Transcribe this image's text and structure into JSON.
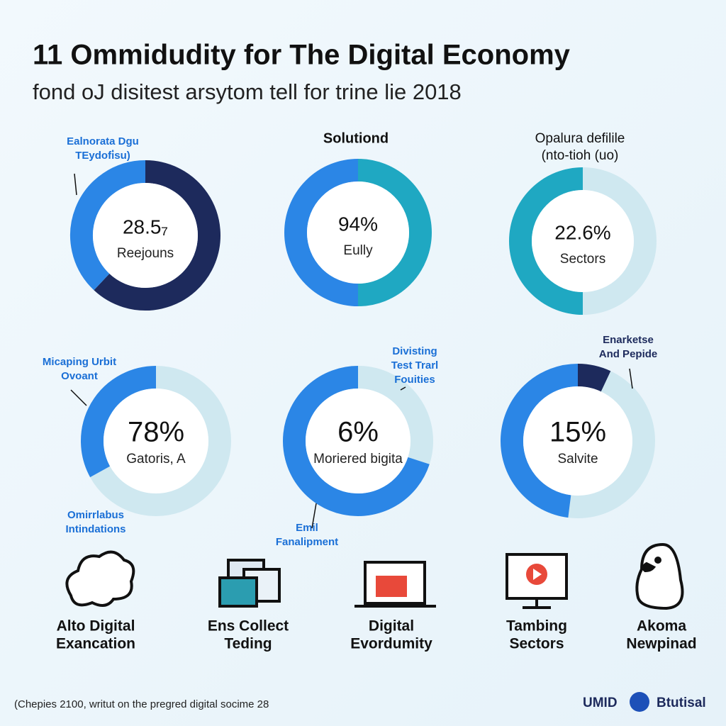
{
  "header": {
    "title": "11 Ommidudity for The Digital Economy",
    "subtitle": "fond oJ disitest arsytom tell for trine lie 2018"
  },
  "donuts": [
    {
      "annotations": [
        [
          "Ealnorata Dgu",
          "TEydofi̇su)"
        ]
      ],
      "center_value": "28.5₇",
      "center_label": "Reejouns",
      "segments": [
        {
          "color": "#1d2a5c",
          "value": 62
        },
        {
          "color": "#2b86e6",
          "value": 38
        }
      ]
    },
    {
      "annotations": [
        [
          "Solutiond"
        ]
      ],
      "center_value": "94%",
      "center_label": "Eully",
      "segments": [
        {
          "color": "#1fa8c2",
          "value": 50
        },
        {
          "color": "#2b86e6",
          "value": 50
        }
      ]
    },
    {
      "annotations": [
        [
          "Opalura defilile",
          "(nto-tioh (uo)"
        ]
      ],
      "center_value": "22.6%",
      "center_label": "Sectors",
      "segments": [
        {
          "color": "#cfe8f0",
          "value": 50
        },
        {
          "color": "#1fa8c2",
          "value": 50
        }
      ]
    },
    {
      "annotations": [
        [
          "Micaping Urbit",
          "Ovoant"
        ],
        [
          "Omirrlabus",
          "Intindations"
        ]
      ],
      "center_value": "78%",
      "center_label": "Gatoris, A",
      "segments": [
        {
          "color": "#cfe8f0",
          "value": 67
        },
        {
          "color": "#2b86e6",
          "value": 33
        }
      ]
    },
    {
      "annotations": [
        [
          "Divisting",
          "Test Trarl",
          "Fouities"
        ],
        [
          "Emil",
          "Fanalipment"
        ]
      ],
      "center_value": "6%",
      "center_label": "Moriered bigita",
      "segments": [
        {
          "color": "#cfe8f0",
          "value": 30
        },
        {
          "color": "#2b86e6",
          "value": 70
        }
      ]
    },
    {
      "annotations": [
        [
          "Enarketse",
          "And Pepide"
        ]
      ],
      "center_value": "15%",
      "center_label": "Salvite",
      "segments": [
        {
          "color": "#1d2a5c",
          "value": 7
        },
        {
          "color": "#cfe8f0",
          "value": 45
        },
        {
          "color": "#2b86e6",
          "value": 48
        }
      ]
    }
  ],
  "icons": [
    [
      "Alto Digital",
      "Exancation"
    ],
    [
      "Ens Collect",
      "Teding"
    ],
    [
      "Digital",
      "Evordumity"
    ],
    [
      "Tambing",
      "Sectors"
    ],
    [
      "Akoma",
      "Newpinad"
    ]
  ],
  "footer": {
    "note": "(Chepies 2100, writut on the pregred digital socime 28",
    "brand": "UMID",
    "brand_suffix": "Btutisal"
  }
}
